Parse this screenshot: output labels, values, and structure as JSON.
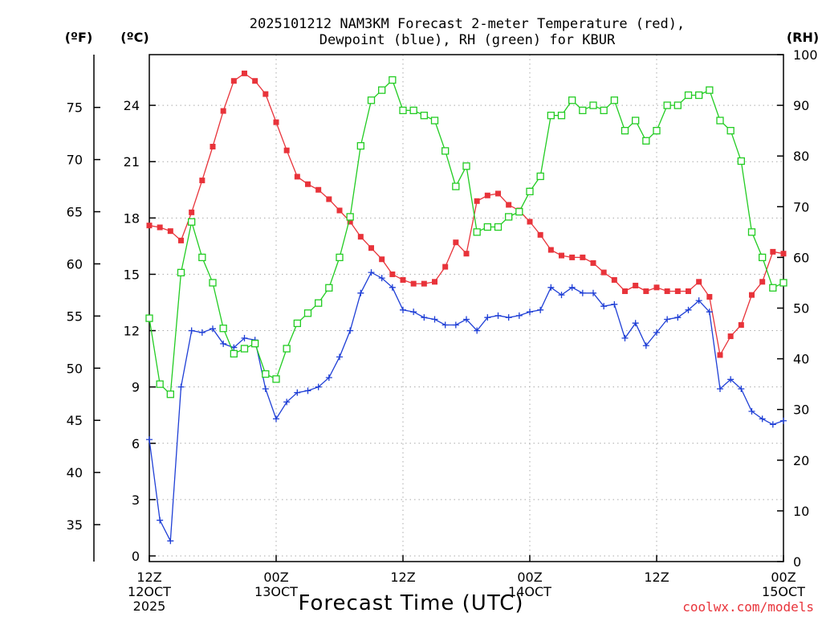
{
  "chart_data": {
    "type": "line",
    "title_lines": [
      "2025101212 NAM3KM Forecast 2-meter Temperature (red),",
      "Dewpoint (blue), RH (green) for KBUR"
    ],
    "xlabel": "Forecast Time (UTC)",
    "credit": "coolwx.com/models",
    "units": {
      "fahrenheit": "(ºF)",
      "celsius": "(ºC)",
      "rh": "(RH)"
    },
    "celsius_axis": {
      "range": [
        -0.3,
        26.7
      ],
      "ticks": [
        0,
        3,
        6,
        9,
        12,
        15,
        18,
        21,
        24
      ]
    },
    "fahrenheit_axis": {
      "range": [
        31.46,
        80.06
      ],
      "ticks": [
        35,
        40,
        45,
        50,
        55,
        60,
        65,
        70,
        75
      ]
    },
    "rh_axis": {
      "range": [
        0,
        100
      ],
      "ticks": [
        0,
        10,
        20,
        30,
        40,
        50,
        60,
        70,
        80,
        90,
        100
      ]
    },
    "x_range": [
      0,
      60
    ],
    "x_ticks": [
      {
        "hour": 0,
        "lines": [
          "12Z",
          "12OCT",
          "2025"
        ]
      },
      {
        "hour": 12,
        "lines": [
          "00Z",
          "13OCT"
        ]
      },
      {
        "hour": 24,
        "lines": [
          "12Z"
        ]
      },
      {
        "hour": 36,
        "lines": [
          "00Z",
          "14OCT"
        ]
      },
      {
        "hour": 48,
        "lines": [
          "12Z"
        ]
      },
      {
        "hour": 60,
        "lines": [
          "00Z",
          "15OCT"
        ]
      }
    ],
    "series": [
      {
        "name": "2-meter Temperature",
        "color": "#e8333a",
        "marker": "filled-square",
        "axis": "celsius",
        "x": [
          0,
          1,
          2,
          3,
          4,
          5,
          6,
          7,
          8,
          9,
          10,
          11,
          12,
          13,
          14,
          15,
          16,
          17,
          18,
          19,
          20,
          21,
          22,
          23,
          24,
          25,
          26,
          27,
          28,
          29,
          30,
          31,
          32,
          33,
          34,
          35,
          36,
          37,
          38,
          39,
          40,
          41,
          42,
          43,
          44,
          45,
          46,
          47,
          48,
          49,
          50,
          51,
          52,
          53,
          54,
          55,
          56,
          57,
          58,
          59,
          60
        ],
        "values": [
          17.6,
          17.5,
          17.3,
          16.8,
          18.3,
          20.0,
          21.8,
          23.7,
          25.3,
          25.7,
          25.3,
          24.6,
          23.1,
          21.6,
          20.2,
          19.8,
          19.5,
          19.0,
          18.4,
          17.8,
          17.0,
          16.4,
          15.8,
          15.0,
          14.7,
          14.5,
          14.5,
          14.6,
          15.4,
          16.7,
          16.1,
          18.9,
          19.2,
          19.3,
          18.7,
          18.4,
          17.8,
          17.1,
          16.3,
          16.0,
          15.9,
          15.9,
          15.6,
          15.1,
          14.7,
          14.1,
          14.4,
          14.1,
          14.3,
          14.1,
          14.1,
          14.1,
          14.6,
          13.8,
          10.7,
          11.7,
          12.3,
          13.9,
          14.6,
          16.2,
          16.1
        ]
      },
      {
        "name": "Dewpoint",
        "color": "#1f3fd6",
        "marker": "plus",
        "axis": "celsius",
        "x": [
          0,
          1,
          2,
          3,
          4,
          5,
          6,
          7,
          8,
          9,
          10,
          11,
          12,
          13,
          14,
          15,
          16,
          17,
          18,
          19,
          20,
          21,
          22,
          23,
          24,
          25,
          26,
          27,
          28,
          29,
          30,
          31,
          32,
          33,
          34,
          35,
          36,
          37,
          38,
          39,
          40,
          41,
          42,
          43,
          44,
          45,
          46,
          47,
          48,
          49,
          50,
          51,
          52,
          53,
          54,
          55,
          56,
          57,
          58,
          59,
          60
        ],
        "values": [
          6.2,
          1.9,
          0.8,
          9.0,
          12.0,
          11.9,
          12.1,
          11.3,
          11.1,
          11.6,
          11.5,
          8.9,
          7.3,
          8.2,
          8.7,
          8.8,
          9.0,
          9.5,
          10.6,
          12.0,
          14.0,
          15.1,
          14.8,
          14.3,
          13.1,
          13.0,
          12.7,
          12.6,
          12.3,
          12.3,
          12.6,
          12.0,
          12.7,
          12.8,
          12.7,
          12.8,
          13.0,
          13.1,
          14.3,
          13.9,
          14.3,
          14.0,
          14.0,
          13.3,
          13.4,
          11.6,
          12.4,
          11.2,
          11.9,
          12.6,
          12.7,
          13.1,
          13.6,
          13.0,
          8.9,
          9.4,
          8.9,
          7.7,
          7.3,
          7.0,
          7.2
        ]
      },
      {
        "name": "RH",
        "color": "#22cc22",
        "marker": "open-square",
        "axis": "rh",
        "x": [
          0,
          1,
          2,
          3,
          4,
          5,
          6,
          7,
          8,
          9,
          10,
          11,
          12,
          13,
          14,
          15,
          16,
          17,
          18,
          19,
          20,
          21,
          22,
          23,
          24,
          25,
          26,
          27,
          28,
          29,
          30,
          31,
          32,
          33,
          34,
          35,
          36,
          37,
          38,
          39,
          40,
          41,
          42,
          43,
          44,
          45,
          46,
          47,
          48,
          49,
          50,
          51,
          52,
          53,
          54,
          55,
          56,
          57,
          58,
          59,
          60
        ],
        "values": [
          48,
          35,
          33,
          57,
          67,
          60,
          55,
          46,
          41,
          42,
          43,
          37,
          36,
          42,
          47,
          49,
          51,
          54,
          60,
          68,
          82,
          91,
          93,
          95,
          89,
          89,
          88,
          87,
          81,
          74,
          78,
          65,
          66,
          66,
          68,
          69,
          73,
          76,
          88,
          88,
          91,
          89,
          90,
          89,
          91,
          85,
          87,
          83,
          85,
          90,
          90,
          92,
          92,
          93,
          87,
          85,
          79,
          65,
          60,
          54,
          55
        ]
      }
    ]
  }
}
